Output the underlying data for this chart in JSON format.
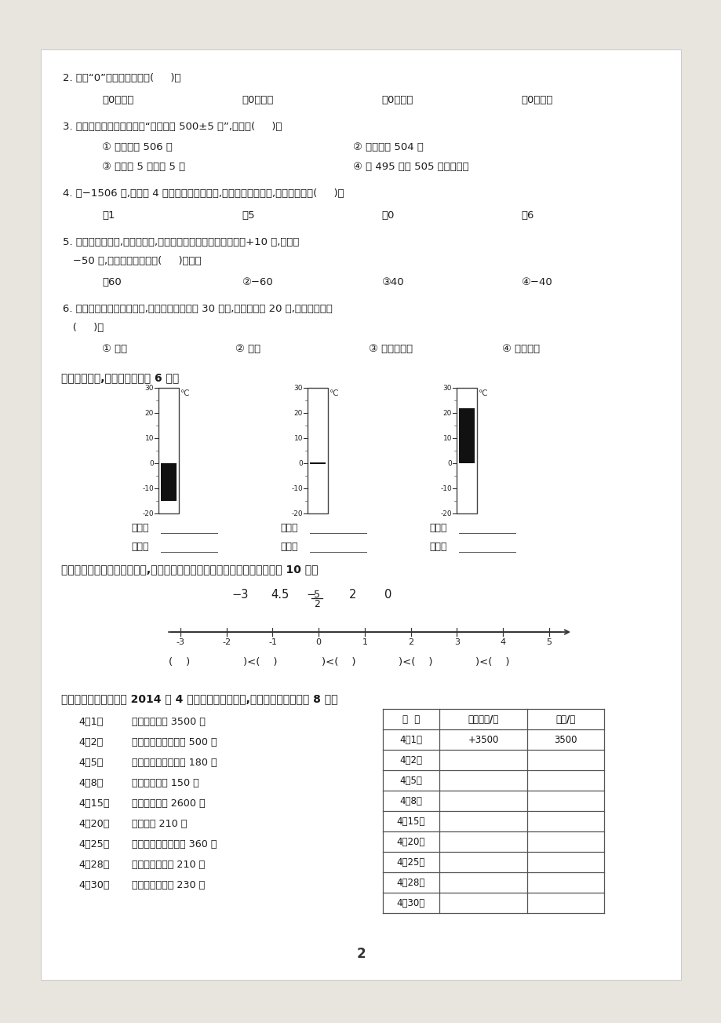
{
  "bg_color": "#e8e4de",
  "page_bg": "#ffffff",
  "text_color": "#222222",
  "q2_text": "2. 关于“0”的说法正确的是(     )。",
  "q2_opts": [
    "\u00010是正数",
    "\u00020是负数",
    "\u00030是整数",
    "\u00040是小数"
  ],
  "q3_text": "3. 在食品包装上我们看到的“净含量是 500±5 克”,它表示(     )。",
  "q3_opt1": "① 可能大于 506 克",
  "q3_opt2": "② 可能小于 504 克",
  "q3_opt3": "③ 可能多 5 克或少 5 克",
  "q3_opt4": "④ 在 495 克到 505 克的范围内",
  "q4_text": "4. 在−1506 中,用数字 4 替换其中的一个数字,要使所得的数最大,替换的数字是(     )。",
  "q4_opts": [
    "\u00011",
    "\u00025",
    "\u00030",
    "\u00046"
  ],
  "q5_text": "5. 以芳芳家为起点,向南走为正,向北走为负。如果芳芳从家走了+10 米,又走了",
  "q5_text2": "−50 米,这时芳芳的位置是(     )米处。",
  "q5_opts": [
    "\u000160",
    "②−60",
    "③40",
    "④−40"
  ],
  "q6_text": "6. 在东西走向的百米跑道上,欢欢在乐乐的东边 30 米处,冬冬离欢欢 20 米,冬冬在乐乐的",
  "q6_text2": "(     )。",
  "q6_opts": [
    "① 东边",
    "② 西边",
    "③ 东边或西边",
    "④ 无法确定"
  ],
  "sec4_title": "四、看温度计,写数读数。（共 6 分）",
  "therm_levels": [
    -15,
    0,
    22
  ],
  "sec5_title": "五、先在直线上表示下列各数,再将这些数按从小到大的顺序排列起来。（共 10 分）",
  "sec6_title": "六、下面是王磊同学家 2014 年 4 月的收入和支出情况,请你完成下表。（共 8 分）",
  "events": [
    [
      "4月1日",
      "爸爸领取工资 3500 元"
    ],
    [
      "4月2日",
      "给爷爷、奶奶生活费 500 元"
    ],
    [
      "4月5日",
      "全家手机费用共支出 180 元"
    ],
    [
      "4月8日",
      "王磊买书支出 150 元"
    ],
    [
      "4月15日",
      "妈妈领取工资 2600 元"
    ],
    [
      "4月20日",
      "交物业费 210 元"
    ],
    [
      "4月25日",
      "爷爷、奶奶体检支出 360 元"
    ],
    [
      "4月28日",
      "去超市购物支出 210 元"
    ],
    [
      "4月30日",
      "妈妈买衣服支出 230 元"
    ]
  ],
  "table_dates": [
    "4月1日",
    "4月2日",
    "4月5日",
    "4月8日",
    "4月15日",
    "4月20日",
    "4月25日",
    "4月28日",
    "4月30日"
  ],
  "table_col1": [
    "+3500",
    "",
    "",
    "",
    "",
    "",
    "",
    "",
    ""
  ],
  "table_col2": [
    "3500",
    "",
    "",
    "",
    "",
    "",
    "",
    "",
    ""
  ],
  "page_number": "2"
}
